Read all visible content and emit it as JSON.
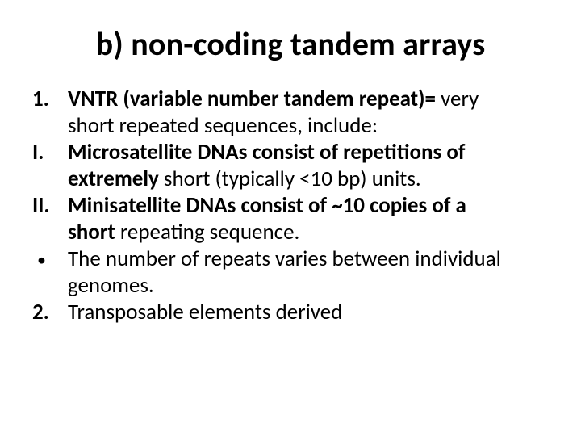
{
  "background_color": "#ffffff",
  "text_color": "#000000",
  "title": "b) non-coding tandem arrays",
  "title_fontsize": 40,
  "body_fontsize": 27,
  "items": {
    "n1": {
      "marker": "1.",
      "bold_lead": "VNTR (variable number tandem repeat)=",
      "rest_line1": " very",
      "rest_line2": "short repeated sequences, include:"
    },
    "rI": {
      "marker": "I.",
      "bold_lead_line1": "Microsatellite DNAs consist of repetitions of",
      "bold_lead_line2_part": "extremely",
      "rest_line2": " short (typically <10 bp) units."
    },
    "rII": {
      "marker": "II.",
      "bold_lead_line1": "Minisatellite DNAs consist of ~10 copies of a",
      "bold_lead_line2_part": "short",
      "rest_line2": " repeating sequence."
    },
    "bullet": {
      "line1": "The number of repeats varies between individual",
      "line2": "genomes."
    },
    "n2": {
      "marker": "2.",
      "text": "Transposable elements derived"
    }
  }
}
